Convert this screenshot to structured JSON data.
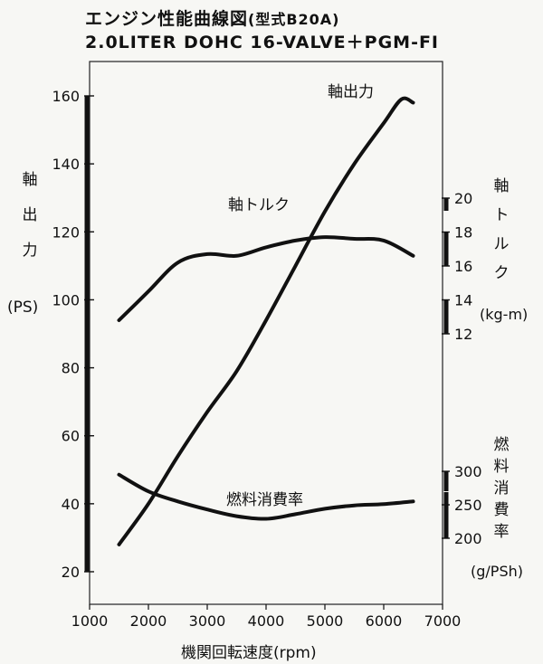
{
  "title": "エンジン性能曲線図",
  "title_note": "(型式B20A)",
  "subtitle": "2.0LITER DOHC 16-VALVE＋PGM-FI",
  "chart_data": {
    "type": "line",
    "x_label": "機関回転速度(rpm)",
    "x_range": [
      1000,
      7000
    ],
    "x_ticks": [
      1000,
      2000,
      3000,
      4000,
      5000,
      6000,
      7000
    ],
    "left_axis": {
      "label_chars": [
        "軸",
        "出",
        "力"
      ],
      "unit": "(PS)",
      "range": [
        20,
        160
      ],
      "ticks": [
        20,
        40,
        60,
        80,
        100,
        120,
        140,
        160
      ]
    },
    "torque_axis": {
      "label_chars": [
        "軸",
        "ト",
        "ル",
        "ク"
      ],
      "unit": "(kg-m)",
      "range": [
        12,
        20
      ],
      "ticks": [
        12,
        14,
        16,
        18,
        20
      ]
    },
    "fuel_axis": {
      "label_chars": [
        "燃",
        "料",
        "消",
        "費",
        "率"
      ],
      "unit": "(g/PSh)",
      "range": [
        200,
        300
      ],
      "ticks": [
        200,
        250,
        300
      ]
    },
    "series": [
      {
        "name": "軸出力",
        "axis": "left",
        "points": [
          [
            1500,
            28
          ],
          [
            2000,
            40
          ],
          [
            2500,
            54
          ],
          [
            3000,
            67
          ],
          [
            3500,
            79
          ],
          [
            4000,
            94
          ],
          [
            4500,
            110
          ],
          [
            5000,
            126
          ],
          [
            5500,
            140
          ],
          [
            6000,
            152
          ],
          [
            6300,
            159
          ],
          [
            6500,
            158
          ]
        ]
      },
      {
        "name": "軸トルク",
        "axis": "torque",
        "points": [
          [
            1500,
            12.8
          ],
          [
            2000,
            14.5
          ],
          [
            2500,
            16.2
          ],
          [
            3000,
            16.7
          ],
          [
            3500,
            16.6
          ],
          [
            4000,
            17.1
          ],
          [
            4500,
            17.5
          ],
          [
            5000,
            17.7
          ],
          [
            5500,
            17.6
          ],
          [
            6000,
            17.5
          ],
          [
            6500,
            16.6
          ]
        ]
      },
      {
        "name": "燃料消費率",
        "axis": "fuel",
        "points": [
          [
            1500,
            295
          ],
          [
            2000,
            270
          ],
          [
            2500,
            255
          ],
          [
            3000,
            243
          ],
          [
            3500,
            233
          ],
          [
            4000,
            229
          ],
          [
            4500,
            236
          ],
          [
            5000,
            244
          ],
          [
            5500,
            249
          ],
          [
            6000,
            251
          ],
          [
            6500,
            255
          ]
        ]
      }
    ],
    "series_label_text": [
      "軸出力",
      "軸トルク",
      "燃料消費率"
    ]
  }
}
